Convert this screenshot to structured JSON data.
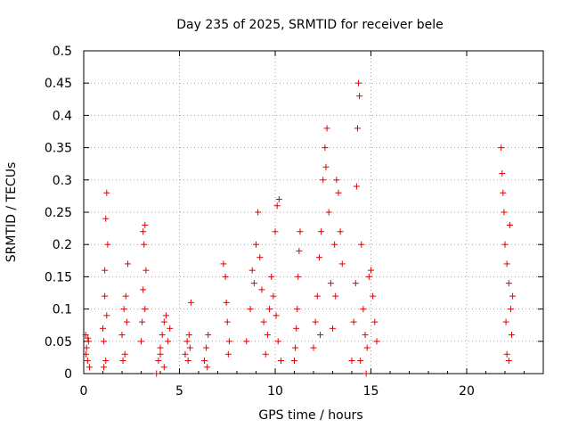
{
  "chart_data": {
    "type": "scatter",
    "title": "Day 235 of 2025, SRMTID for receiver bele",
    "xlabel": "GPS time / hours",
    "ylabel": "SRMTID / TECUs",
    "xlim": [
      0,
      24
    ],
    "ylim": [
      0,
      0.5
    ],
    "xticks": [
      0,
      5,
      10,
      15,
      20
    ],
    "xtick_labels": [
      "0",
      "5",
      "10",
      "15",
      "20"
    ],
    "yticks": [
      0,
      0.05,
      0.1,
      0.15,
      0.2,
      0.25,
      0.3,
      0.35,
      0.4,
      0.45,
      0.5
    ],
    "ytick_labels": [
      "0",
      "0.05",
      "0.1",
      "0.15",
      "0.2",
      "0.25",
      "0.3",
      "0.35",
      "0.4",
      "0.45",
      "0.5"
    ],
    "grid": true,
    "marker": "+",
    "color": "#e00000",
    "series": [
      {
        "name": "SRMTID",
        "points": [
          [
            0.1,
            0.06
          ],
          [
            0.15,
            0.04
          ],
          [
            0.2,
            0.02
          ],
          [
            0.25,
            0.05
          ],
          [
            0.3,
            0.01
          ],
          [
            0.12,
            0.03
          ],
          [
            0.22,
            0.055
          ],
          [
            1.0,
            0.07
          ],
          [
            1.05,
            0.05
          ],
          [
            1.1,
            0.12
          ],
          [
            1.15,
            0.24
          ],
          [
            1.2,
            0.28
          ],
          [
            1.25,
            0.2
          ],
          [
            1.1,
            0.16
          ],
          [
            1.15,
            0.02
          ],
          [
            1.05,
            0.01
          ],
          [
            1.2,
            0.09
          ],
          [
            2.0,
            0.06
          ],
          [
            2.1,
            0.1
          ],
          [
            2.2,
            0.12
          ],
          [
            2.3,
            0.17
          ],
          [
            2.15,
            0.03
          ],
          [
            2.25,
            0.08
          ],
          [
            2.05,
            0.02
          ],
          [
            3.0,
            0.05
          ],
          [
            3.1,
            0.22
          ],
          [
            3.15,
            0.2
          ],
          [
            3.2,
            0.23
          ],
          [
            3.25,
            0.16
          ],
          [
            3.1,
            0.13
          ],
          [
            3.2,
            0.1
          ],
          [
            3.05,
            0.08
          ],
          [
            3.8,
            0.0
          ],
          [
            3.9,
            0.02
          ],
          [
            4.0,
            0.04
          ],
          [
            4.1,
            0.06
          ],
          [
            4.2,
            0.08
          ],
          [
            4.3,
            0.09
          ],
          [
            4.4,
            0.05
          ],
          [
            4.0,
            0.03
          ],
          [
            4.2,
            0.01
          ],
          [
            4.5,
            0.07
          ],
          [
            5.3,
            0.03
          ],
          [
            5.4,
            0.05
          ],
          [
            5.5,
            0.06
          ],
          [
            5.6,
            0.11
          ],
          [
            5.45,
            0.02
          ],
          [
            5.55,
            0.04
          ],
          [
            6.3,
            0.02
          ],
          [
            6.4,
            0.04
          ],
          [
            6.5,
            0.06
          ],
          [
            6.45,
            0.01
          ],
          [
            7.3,
            0.17
          ],
          [
            7.4,
            0.15
          ],
          [
            7.5,
            0.08
          ],
          [
            7.6,
            0.05
          ],
          [
            7.55,
            0.03
          ],
          [
            7.45,
            0.11
          ],
          [
            8.5,
            0.05
          ],
          [
            8.7,
            0.1
          ],
          [
            8.9,
            0.14
          ],
          [
            9.0,
            0.2
          ],
          [
            9.1,
            0.25
          ],
          [
            9.2,
            0.18
          ],
          [
            9.3,
            0.13
          ],
          [
            9.4,
            0.08
          ],
          [
            9.5,
            0.03
          ],
          [
            8.8,
            0.16
          ],
          [
            9.6,
            0.06
          ],
          [
            9.7,
            0.1
          ],
          [
            9.8,
            0.15
          ],
          [
            9.9,
            0.12
          ],
          [
            10.0,
            0.22
          ],
          [
            10.1,
            0.26
          ],
          [
            10.2,
            0.27
          ],
          [
            10.05,
            0.09
          ],
          [
            10.15,
            0.05
          ],
          [
            10.3,
            0.02
          ],
          [
            11.0,
            0.02
          ],
          [
            11.1,
            0.07
          ],
          [
            11.2,
            0.15
          ],
          [
            11.3,
            0.22
          ],
          [
            11.15,
            0.1
          ],
          [
            11.25,
            0.19
          ],
          [
            11.05,
            0.04
          ],
          [
            12.0,
            0.04
          ],
          [
            12.1,
            0.08
          ],
          [
            12.2,
            0.12
          ],
          [
            12.3,
            0.18
          ],
          [
            12.4,
            0.22
          ],
          [
            12.5,
            0.3
          ],
          [
            12.6,
            0.35
          ],
          [
            12.7,
            0.38
          ],
          [
            12.8,
            0.25
          ],
          [
            12.9,
            0.14
          ],
          [
            13.0,
            0.07
          ],
          [
            13.1,
            0.2
          ],
          [
            13.2,
            0.3
          ],
          [
            13.3,
            0.28
          ],
          [
            13.4,
            0.22
          ],
          [
            13.5,
            0.17
          ],
          [
            12.35,
            0.06
          ],
          [
            12.65,
            0.32
          ],
          [
            13.15,
            0.12
          ],
          [
            14.0,
            0.02
          ],
          [
            14.1,
            0.08
          ],
          [
            14.2,
            0.14
          ],
          [
            14.25,
            0.29
          ],
          [
            14.3,
            0.38
          ],
          [
            14.35,
            0.45
          ],
          [
            14.4,
            0.43
          ],
          [
            14.5,
            0.2
          ],
          [
            14.6,
            0.1
          ],
          [
            14.7,
            0.06
          ],
          [
            14.8,
            0.04
          ],
          [
            14.9,
            0.15
          ],
          [
            15.0,
            0.16
          ],
          [
            15.1,
            0.12
          ],
          [
            15.2,
            0.08
          ],
          [
            15.3,
            0.05
          ],
          [
            14.45,
            0.02
          ],
          [
            14.75,
            0.0
          ],
          [
            21.8,
            0.35
          ],
          [
            21.85,
            0.31
          ],
          [
            21.9,
            0.28
          ],
          [
            21.95,
            0.25
          ],
          [
            22.0,
            0.2
          ],
          [
            22.1,
            0.17
          ],
          [
            22.2,
            0.14
          ],
          [
            22.3,
            0.1
          ],
          [
            22.35,
            0.06
          ],
          [
            22.1,
            0.03
          ],
          [
            22.2,
            0.02
          ],
          [
            22.05,
            0.08
          ],
          [
            22.25,
            0.23
          ],
          [
            22.4,
            0.12
          ]
        ]
      }
    ]
  }
}
